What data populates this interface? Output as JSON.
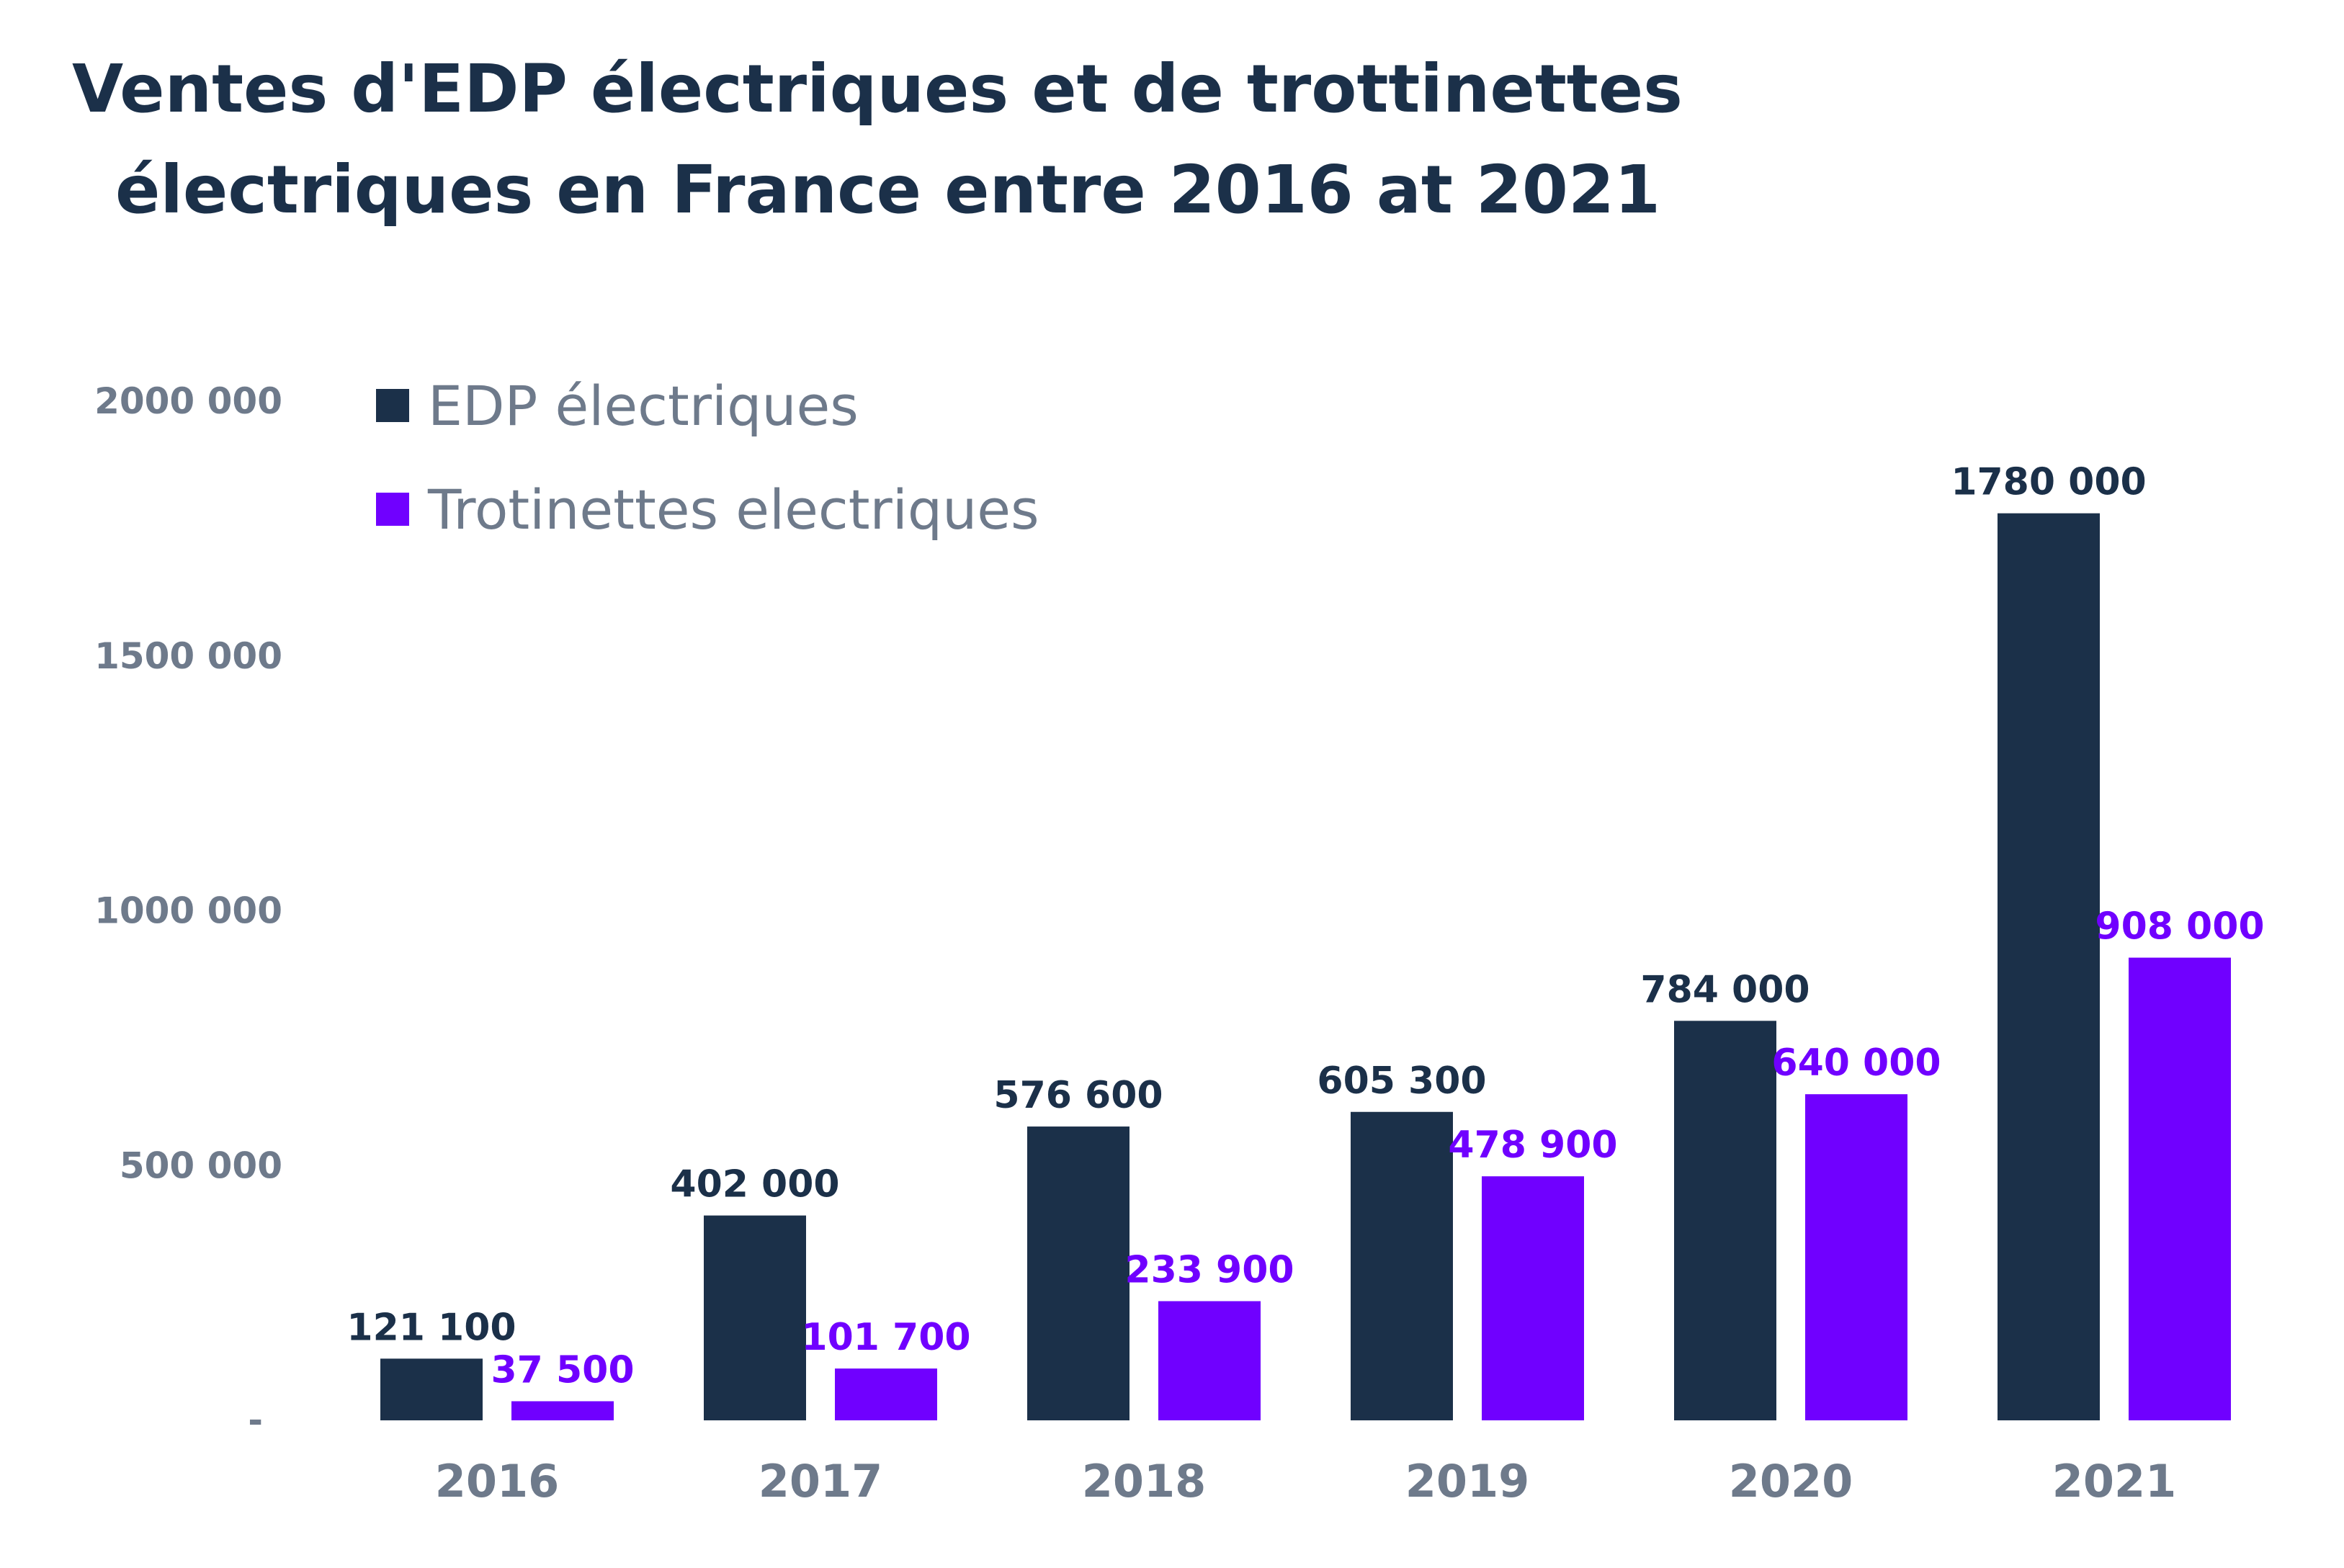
{
  "chart_data": {
    "type": "bar",
    "title": "Ventes d'EDP électriques et de trottinettes électriques en France entre 2016 at 2021",
    "title_lines": [
      "Ventes d'EDP électriques et de trottinettes",
      "électriques en France entre 2016 at 2021"
    ],
    "categories": [
      "2016",
      "2017",
      "2018",
      "2019",
      "2020",
      "2021"
    ],
    "series": [
      {
        "name": "EDP électriques",
        "color": "#1b3049",
        "values": [
          121100,
          402000,
          576600,
          605300,
          784000,
          1780000
        ],
        "labels": [
          "121 100",
          "402 000",
          "576 600",
          "605 300",
          "784 000",
          "1780 000"
        ]
      },
      {
        "name": "Trotinettes electriques",
        "color": "#7000ff",
        "values": [
          37500,
          101700,
          233900,
          478900,
          640000,
          908000
        ],
        "labels": [
          "37 500",
          "101 700",
          "233 900",
          "478 900",
          "640 000",
          "908 000"
        ]
      }
    ],
    "y_ticks": [
      0,
      500000,
      1000000,
      1500000,
      2000000
    ],
    "y_tick_labels": [
      "-",
      "500 000",
      "1000 000",
      "1500 000",
      "2000 000"
    ],
    "ylim": [
      0,
      2000000
    ],
    "xlabel": "",
    "ylabel": "",
    "grid": false,
    "legend_position": "top-left"
  }
}
